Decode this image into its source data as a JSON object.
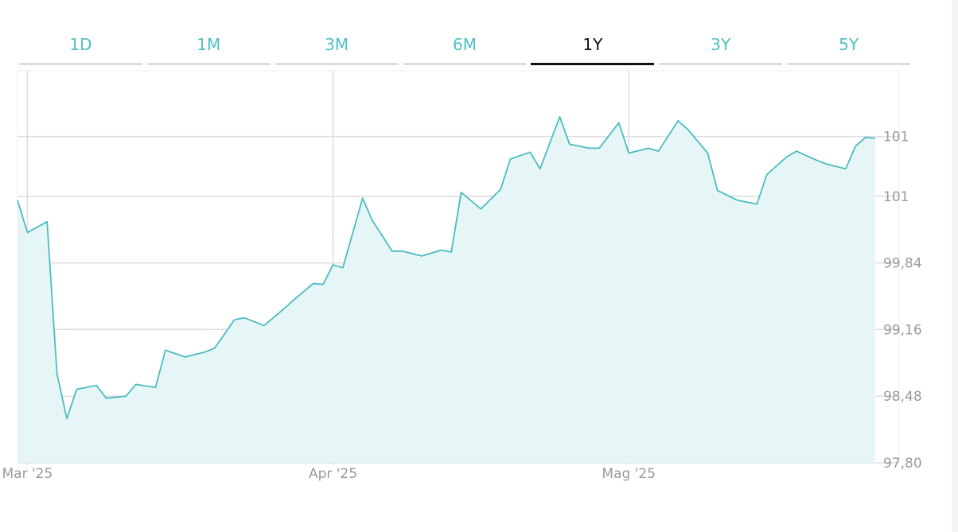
{
  "tabs": [
    {
      "label": "1D",
      "active": false
    },
    {
      "label": "1M",
      "active": false
    },
    {
      "label": "3M",
      "active": false
    },
    {
      "label": "6M",
      "active": false
    },
    {
      "label": "1Y",
      "active": true
    },
    {
      "label": "3Y",
      "active": false
    },
    {
      "label": "5Y",
      "active": false
    }
  ],
  "colors": {
    "accent": "#4fc0c0",
    "line": "#4cbcc0",
    "area": "#e6f6f7",
    "grid": "#dddddd",
    "tab_inactive": "#4fc0c0",
    "tab_active": "#111111"
  },
  "chart_data": {
    "type": "area",
    "grid": true,
    "y_axis_side": "right",
    "ylim": [
      97.8,
      101.8
    ],
    "y_ticks": [
      {
        "value": 101.13,
        "label": "101"
      },
      {
        "value": 100.52,
        "label": "101"
      },
      {
        "value": 99.84,
        "label": "99,84"
      },
      {
        "value": 99.16,
        "label": "99,16"
      },
      {
        "value": 98.48,
        "label": "98,48"
      },
      {
        "value": 97.8,
        "label": "97,80"
      }
    ],
    "x_ticks": [
      {
        "date": "2025-03-01",
        "label": "Mar '25"
      },
      {
        "date": "2025-04-01",
        "label": "Apr '25"
      },
      {
        "date": "2025-05-01",
        "label": "Mag '25"
      }
    ],
    "x_range": [
      "2025-02-28",
      "2025-05-26"
    ],
    "series": [
      {
        "points": [
          [
            "2025-02-28",
            100.48
          ],
          [
            "2025-03-01",
            100.15
          ],
          [
            "2025-03-03",
            100.26
          ],
          [
            "2025-03-04",
            98.71
          ],
          [
            "2025-03-05",
            98.25
          ],
          [
            "2025-03-06",
            98.55
          ],
          [
            "2025-03-08",
            98.59
          ],
          [
            "2025-03-09",
            98.46
          ],
          [
            "2025-03-11",
            98.48
          ],
          [
            "2025-03-12",
            98.6
          ],
          [
            "2025-03-14",
            98.57
          ],
          [
            "2025-03-15",
            98.95
          ],
          [
            "2025-03-17",
            98.88
          ],
          [
            "2025-03-19",
            98.93
          ],
          [
            "2025-03-20",
            98.97
          ],
          [
            "2025-03-22",
            99.26
          ],
          [
            "2025-03-23",
            99.28
          ],
          [
            "2025-03-25",
            99.2
          ],
          [
            "2025-03-27",
            99.37
          ],
          [
            "2025-03-28",
            99.46
          ],
          [
            "2025-03-30",
            99.63
          ],
          [
            "2025-03-31",
            99.62
          ],
          [
            "2025-04-01",
            99.82
          ],
          [
            "2025-04-02",
            99.79
          ],
          [
            "2025-04-04",
            100.5
          ],
          [
            "2025-04-05",
            100.27
          ],
          [
            "2025-04-07",
            99.96
          ],
          [
            "2025-04-08",
            99.96
          ],
          [
            "2025-04-10",
            99.91
          ],
          [
            "2025-04-12",
            99.97
          ],
          [
            "2025-04-13",
            99.95
          ],
          [
            "2025-04-14",
            100.56
          ],
          [
            "2025-04-16",
            100.39
          ],
          [
            "2025-04-18",
            100.59
          ],
          [
            "2025-04-19",
            100.9
          ],
          [
            "2025-04-21",
            100.97
          ],
          [
            "2025-04-22",
            100.8
          ],
          [
            "2025-04-24",
            101.33
          ],
          [
            "2025-04-25",
            101.05
          ],
          [
            "2025-04-27",
            101.01
          ],
          [
            "2025-04-28",
            101.01
          ],
          [
            "2025-04-30",
            101.27
          ],
          [
            "2025-05-01",
            100.96
          ],
          [
            "2025-05-03",
            101.01
          ],
          [
            "2025-05-04",
            100.98
          ],
          [
            "2025-05-06",
            101.29
          ],
          [
            "2025-05-07",
            101.2
          ],
          [
            "2025-05-09",
            100.96
          ],
          [
            "2025-05-10",
            100.58
          ],
          [
            "2025-05-12",
            100.48
          ],
          [
            "2025-05-14",
            100.44
          ],
          [
            "2025-05-15",
            100.74
          ],
          [
            "2025-05-17",
            100.92
          ],
          [
            "2025-05-18",
            100.98
          ],
          [
            "2025-05-20",
            100.89
          ],
          [
            "2025-05-21",
            100.85
          ],
          [
            "2025-05-23",
            100.8
          ],
          [
            "2025-05-24",
            101.03
          ],
          [
            "2025-05-25",
            101.12
          ],
          [
            "2025-05-26",
            101.11
          ]
        ]
      }
    ]
  }
}
